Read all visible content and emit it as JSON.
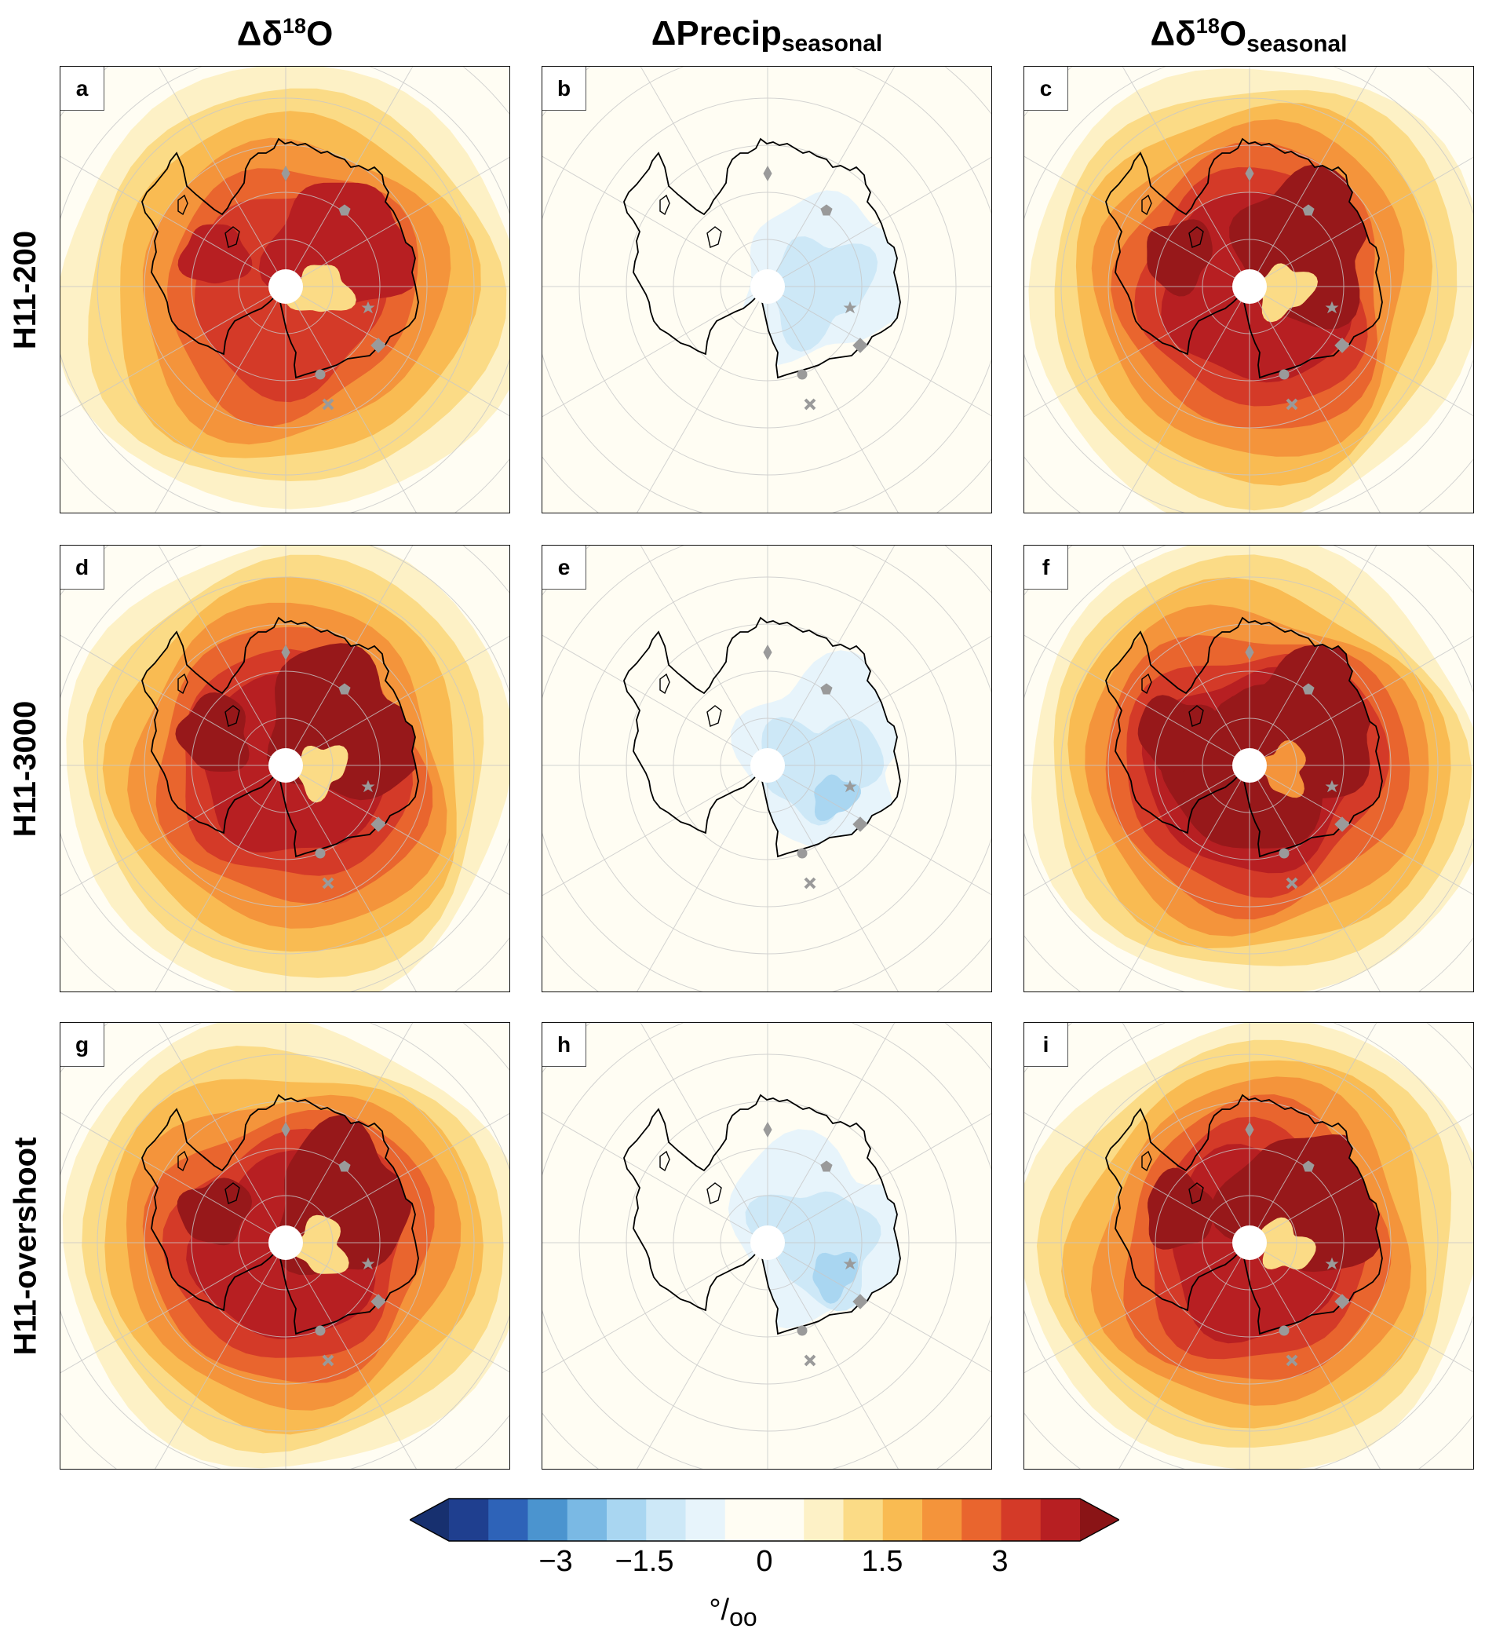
{
  "columns": {
    "c1": {
      "base": "Δδ",
      "sup": "18",
      "tail": "O",
      "sub": ""
    },
    "c2": {
      "base": "ΔPrecip",
      "sup": "",
      "tail": "",
      "sub": "seasonal"
    },
    "c3": {
      "base": "Δδ",
      "sup": "18",
      "tail": "O",
      "sub": "seasonal"
    }
  },
  "rows": [
    "H11-200",
    "H11-3000",
    "H11-overshoot"
  ],
  "panels": [
    {
      "label": "a",
      "field": "d18o",
      "intensity": 0.55
    },
    {
      "label": "b",
      "field": "precip",
      "intensity": 0.45
    },
    {
      "label": "c",
      "field": "d18o",
      "intensity": 0.7
    },
    {
      "label": "d",
      "field": "d18o",
      "intensity": 0.85
    },
    {
      "label": "e",
      "field": "precip",
      "intensity": 0.6
    },
    {
      "label": "f",
      "field": "d18o",
      "intensity": 1.0
    },
    {
      "label": "g",
      "field": "d18o",
      "intensity": 0.65
    },
    {
      "label": "h",
      "field": "precip",
      "intensity": 0.75
    },
    {
      "label": "i",
      "field": "d18o",
      "intensity": 0.8
    }
  ],
  "colorbar": {
    "min": -4.5,
    "max": 4.5,
    "step": 0.5,
    "colors": [
      "#1f3f8f",
      "#2e63b8",
      "#4b94cf",
      "#7ab9e4",
      "#a9d6f1",
      "#cde8f7",
      "#e7f4fb",
      "#fffdf3",
      "#fffdf3",
      "#fdf1c6",
      "#fbdb86",
      "#f9bb52",
      "#f4943b",
      "#e9652e",
      "#d43a28",
      "#b71f22"
    ],
    "under_color": "#17306f",
    "over_color": "#8a1416",
    "ticks": [
      {
        "label": "−3",
        "value": -3
      },
      {
        "label": "−1.5",
        "value": -1.5
      },
      {
        "label": "0",
        "value": 0
      },
      {
        "label": "1.5",
        "value": 1.5
      },
      {
        "label": "3",
        "value": 3
      }
    ],
    "unit": {
      "base": "°/",
      "sub": "oo"
    }
  },
  "site_markers": [
    "diamond-marker",
    "pentagon-marker",
    "star-marker",
    "large-diamond-marker",
    "circle-marker",
    "cross-marker"
  ]
}
